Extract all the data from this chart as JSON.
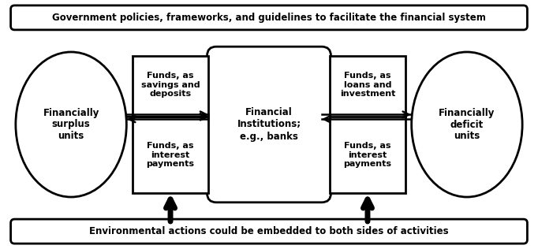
{
  "bg_color": "#ffffff",
  "border_color": "#000000",
  "top_banner_text": "Government policies, frameworks, and guidelines to facilitate the financial system",
  "bottom_banner_text": "Environmental actions could be embedded to both sides of activities",
  "left_circle_text": "Financially\nsurplus\nunits",
  "right_circle_text": "Financially\ndeficit\nunits",
  "center_box_text": "Financial\nInstitutions;\ne.g., banks",
  "top_left_box_text": "Funds, as\nsavings and\ndeposits",
  "bottom_left_box_text": "Funds, as\ninterest\npayments",
  "top_right_box_text": "Funds, as\nloans and\ninvestment",
  "bottom_right_box_text": "Funds, as\ninterest\npayments",
  "font_size_banner": 8.5,
  "font_size_labels": 8.0,
  "font_size_circle": 8.5,
  "font_size_center": 8.5
}
